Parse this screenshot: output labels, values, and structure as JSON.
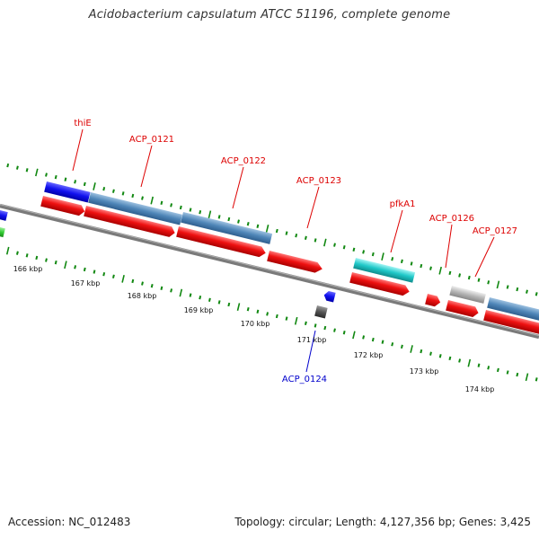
{
  "header": {
    "title": "Acidobacterium capsulatum ATCC 51196, complete genome"
  },
  "footer": {
    "accession": "Accession: NC_012483",
    "topology": "Topology: circular; Length: 4,127,356 bp; Genes: 3,425"
  },
  "scale_labels": [
    "166 kbp",
    "167 kbp",
    "168 kbp",
    "169 kbp",
    "170 kbp",
    "171 kbp",
    "172 kbp",
    "173 kbp",
    "174 kbp"
  ],
  "gene_labels": [
    "thiE",
    "ACP_0121",
    "ACP_0122",
    "ACP_0123",
    "pfkA1",
    "ACP_0126",
    "ACP_0127",
    "ACP_0124"
  ],
  "colors": {
    "forward_label": "#dd0000",
    "reverse_label": "#0000cc",
    "cds": "#ee1111",
    "steelblue": "#4f86b8",
    "teal": "#1fc8c8",
    "grey": "#b5b5b5",
    "darkgrey": "#555555",
    "blue": "#1111ee",
    "green": "#33cc33",
    "backbone": "#7f7f7f",
    "ticks": "#118811"
  }
}
